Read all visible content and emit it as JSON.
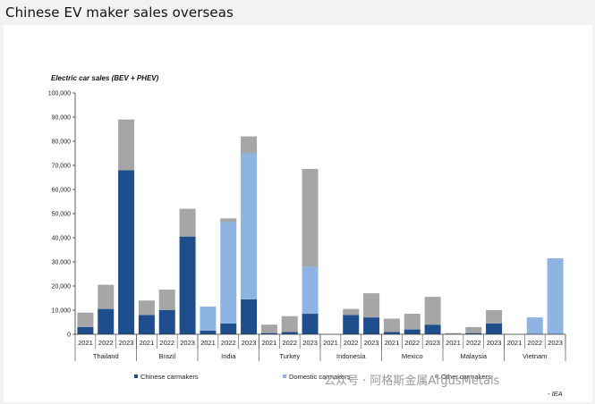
{
  "page": {
    "title": "Chinese EV maker sales overseas"
  },
  "watermark": {
    "text": "公众号 · 阿格斯金属ArgusMetals"
  },
  "chart_data": {
    "type": "bar",
    "stacked": true,
    "ylabel": "Electric car sales (BEV + PHEV)",
    "ylim": [
      0,
      100000
    ],
    "yticks": [
      "0",
      "10,000",
      "20,000",
      "30,000",
      "40,000",
      "50,000",
      "60,000",
      "70,000",
      "80,000",
      "90,000",
      "100,000"
    ],
    "years": [
      "2021",
      "2022",
      "2023"
    ],
    "groups": [
      "Thailand",
      "Brazil",
      "India",
      "Turkey",
      "Indonesia",
      "Mexico",
      "Malaysia",
      "Vietnam"
    ],
    "series": [
      {
        "name": "Chinese carmakers",
        "color": "#1f4e8c",
        "values": [
          3000,
          10500,
          68000,
          8000,
          10000,
          40500,
          1500,
          4500,
          14500,
          500,
          1000,
          8500,
          0,
          8000,
          7000,
          1000,
          2000,
          4000,
          0,
          500,
          4500,
          0,
          0,
          0
        ]
      },
      {
        "name": "Domestic carmakers",
        "color": "#8db4e2",
        "values": [
          0,
          0,
          0,
          0,
          0,
          0,
          10000,
          42000,
          60500,
          0,
          0,
          19500,
          0,
          0,
          0,
          0,
          0,
          0,
          0,
          0,
          0,
          0,
          7000,
          31500
        ]
      },
      {
        "name": "Other carmakers",
        "color": "#a6a6a6",
        "values": [
          6000,
          10000,
          21000,
          6000,
          8500,
          11500,
          0,
          1500,
          7000,
          3500,
          6500,
          40500,
          0,
          2500,
          10000,
          5500,
          6500,
          11500,
          500,
          2500,
          5500,
          0,
          0,
          0
        ]
      }
    ],
    "legend_position": "bottom",
    "source": "- IEA",
    "grid": false
  }
}
